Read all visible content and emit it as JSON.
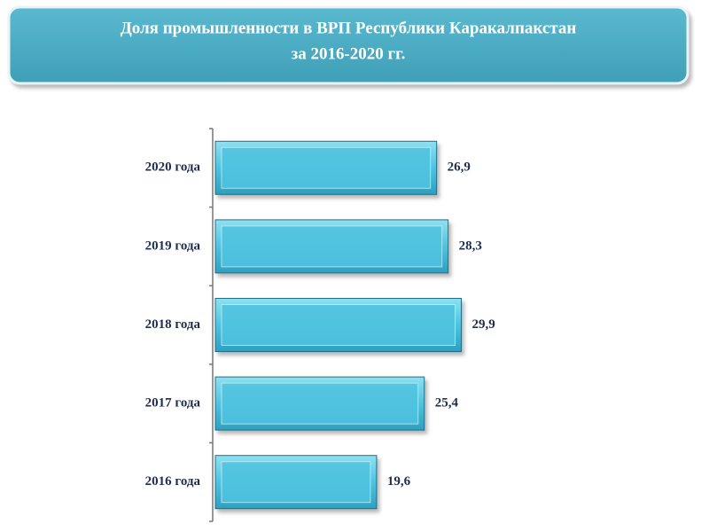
{
  "chart_data": {
    "type": "bar",
    "orientation": "horizontal",
    "title": [
      "Доля промышленности в ВРП Республики Каракалпакстан",
      "за 2016-2020 гг."
    ],
    "categories": [
      "2020 года",
      "2019 года",
      "2018 года",
      "2017 года",
      "2016 года"
    ],
    "values": [
      26.9,
      28.3,
      29.9,
      25.4,
      19.6
    ],
    "value_labels": [
      "26,9",
      "28,3",
      "29,9",
      "25,4",
      "19,6"
    ],
    "color": "#4fc3df",
    "xlim": [
      0,
      32
    ]
  }
}
